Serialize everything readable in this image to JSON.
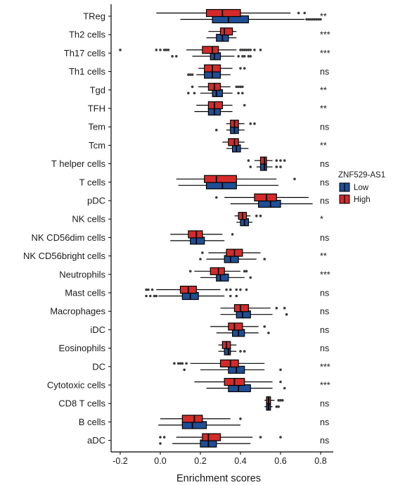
{
  "chart_data": {
    "type": "boxplot",
    "xlabel": "Enrichment scores",
    "xlim": [
      -0.25,
      0.85
    ],
    "xticks": [
      -0.2,
      0.0,
      0.2,
      0.4,
      0.6,
      0.8
    ],
    "xtick_labels": [
      "-0.2",
      "0.0",
      "0.2",
      "0.4",
      "0.6",
      "0.8"
    ],
    "legend": {
      "title": "ZNF529-AS1",
      "position": "right",
      "entries": [
        {
          "name": "Low",
          "color": "#1f4e96"
        },
        {
          "name": "High",
          "color": "#d42a2a"
        }
      ]
    },
    "categories": [
      {
        "name": "TReg",
        "sig": "**",
        "high": {
          "whislo": -0.02,
          "q1": 0.23,
          "med": 0.31,
          "q3": 0.4,
          "whishi": 0.65,
          "outliers": [
            0.69,
            0.72
          ]
        },
        "low": {
          "whislo": 0.1,
          "q1": 0.26,
          "med": 0.34,
          "q3": 0.44,
          "whishi": 0.72,
          "outliers": [
            0.73,
            0.74,
            0.75,
            0.76,
            0.77,
            0.78,
            0.79,
            0.8
          ]
        }
      },
      {
        "name": "Th2 cells",
        "sig": "***",
        "high": {
          "whislo": 0.24,
          "q1": 0.3,
          "med": 0.32,
          "q3": 0.36,
          "whishi": 0.38,
          "outliers": []
        },
        "low": {
          "whislo": 0.23,
          "q1": 0.28,
          "med": 0.31,
          "q3": 0.34,
          "whishi": 0.38,
          "outliers": []
        }
      },
      {
        "name": "Th17 cells",
        "sig": "***",
        "high": {
          "whislo": 0.13,
          "q1": 0.21,
          "med": 0.26,
          "q3": 0.29,
          "whishi": 0.38,
          "outliers": [
            -0.2,
            -0.02,
            0.0,
            0.02,
            0.03,
            0.04,
            0.4,
            0.41,
            0.42,
            0.43,
            0.44,
            0.45,
            0.47,
            0.5
          ]
        },
        "low": {
          "whislo": 0.16,
          "q1": 0.25,
          "med": 0.27,
          "q3": 0.3,
          "whishi": 0.37,
          "outliers": [
            0.06,
            0.08,
            0.39,
            0.41,
            0.42,
            0.44,
            0.45
          ]
        }
      },
      {
        "name": "Th1 cells",
        "sig": "ns",
        "high": {
          "whislo": 0.19,
          "q1": 0.22,
          "med": 0.26,
          "q3": 0.3,
          "whishi": 0.36,
          "outliers": [
            0.4,
            0.42
          ]
        },
        "low": {
          "whislo": 0.18,
          "q1": 0.22,
          "med": 0.26,
          "q3": 0.3,
          "whishi": 0.35,
          "outliers": [
            0.14,
            0.15,
            0.16
          ]
        }
      },
      {
        "name": "Tgd",
        "sig": "**",
        "high": {
          "whislo": 0.19,
          "q1": 0.24,
          "med": 0.27,
          "q3": 0.3,
          "whishi": 0.35,
          "outliers": [
            0.16,
            0.38,
            0.39,
            0.4,
            0.41
          ]
        },
        "low": {
          "whislo": 0.2,
          "q1": 0.26,
          "med": 0.28,
          "q3": 0.31,
          "whishi": 0.36,
          "outliers": [
            0.14,
            0.17,
            0.39,
            0.41
          ]
        }
      },
      {
        "name": "TFH",
        "sig": "**",
        "high": {
          "whislo": 0.18,
          "q1": 0.24,
          "med": 0.27,
          "q3": 0.31,
          "whishi": 0.36,
          "outliers": [
            0.42
          ]
        },
        "low": {
          "whislo": 0.17,
          "q1": 0.24,
          "med": 0.27,
          "q3": 0.3,
          "whishi": 0.36,
          "outliers": []
        }
      },
      {
        "name": "Tem",
        "sig": "ns",
        "high": {
          "whislo": 0.33,
          "q1": 0.35,
          "med": 0.37,
          "q3": 0.39,
          "whishi": 0.42,
          "outliers": [
            0.45,
            0.47
          ]
        },
        "low": {
          "whislo": 0.33,
          "q1": 0.35,
          "med": 0.37,
          "q3": 0.39,
          "whishi": 0.42,
          "outliers": [
            0.28
          ]
        }
      },
      {
        "name": "Tcm",
        "sig": "**",
        "high": {
          "whislo": 0.31,
          "q1": 0.34,
          "med": 0.37,
          "q3": 0.39,
          "whishi": 0.42,
          "outliers": []
        },
        "low": {
          "whislo": 0.33,
          "q1": 0.36,
          "med": 0.38,
          "q3": 0.4,
          "whishi": 0.44,
          "outliers": []
        }
      },
      {
        "name": "T helper cells",
        "sig": "ns",
        "high": {
          "whislo": 0.47,
          "q1": 0.5,
          "med": 0.52,
          "q3": 0.53,
          "whishi": 0.56,
          "outliers": [
            0.44,
            0.58,
            0.6,
            0.62
          ]
        },
        "low": {
          "whislo": 0.48,
          "q1": 0.5,
          "med": 0.52,
          "q3": 0.53,
          "whishi": 0.56,
          "outliers": [
            0.45,
            0.58,
            0.6
          ]
        }
      },
      {
        "name": "T cells",
        "sig": "ns",
        "high": {
          "whislo": 0.08,
          "q1": 0.22,
          "med": 0.28,
          "q3": 0.38,
          "whishi": 0.58,
          "outliers": [
            0.67
          ]
        },
        "low": {
          "whislo": 0.09,
          "q1": 0.23,
          "med": 0.31,
          "q3": 0.38,
          "whishi": 0.59,
          "outliers": []
        }
      },
      {
        "name": "pDC",
        "sig": "ns",
        "high": {
          "whislo": 0.32,
          "q1": 0.47,
          "med": 0.53,
          "q3": 0.58,
          "whishi": 0.74,
          "outliers": [
            0.28
          ]
        },
        "low": {
          "whislo": 0.35,
          "q1": 0.49,
          "med": 0.55,
          "q3": 0.6,
          "whishi": 0.76,
          "outliers": []
        }
      },
      {
        "name": "NK cells",
        "sig": "*",
        "high": {
          "whislo": 0.37,
          "q1": 0.39,
          "med": 0.41,
          "q3": 0.43,
          "whishi": 0.45,
          "outliers": [
            0.48,
            0.5
          ]
        },
        "low": {
          "whislo": 0.38,
          "q1": 0.4,
          "med": 0.42,
          "q3": 0.44,
          "whishi": 0.46,
          "outliers": []
        }
      },
      {
        "name": "NK CD56dim cells",
        "sig": "ns",
        "high": {
          "whislo": 0.05,
          "q1": 0.14,
          "med": 0.18,
          "q3": 0.21,
          "whishi": 0.31,
          "outliers": [
            0.36
          ]
        },
        "low": {
          "whislo": 0.05,
          "q1": 0.15,
          "med": 0.18,
          "q3": 0.22,
          "whishi": 0.32,
          "outliers": []
        }
      },
      {
        "name": "NK CD56bright cells",
        "sig": "**",
        "high": {
          "whislo": 0.24,
          "q1": 0.33,
          "med": 0.37,
          "q3": 0.41,
          "whishi": 0.5,
          "outliers": [
            0.21
          ]
        },
        "low": {
          "whislo": 0.23,
          "q1": 0.32,
          "med": 0.35,
          "q3": 0.39,
          "whishi": 0.48,
          "outliers": [
            0.2,
            0.52
          ]
        }
      },
      {
        "name": "Neutrophils",
        "sig": "***",
        "high": {
          "whislo": 0.17,
          "q1": 0.25,
          "med": 0.29,
          "q3": 0.32,
          "whishi": 0.4,
          "outliers": [
            0.15,
            0.42,
            0.43
          ]
        },
        "low": {
          "whislo": 0.2,
          "q1": 0.28,
          "med": 0.3,
          "q3": 0.34,
          "whishi": 0.42,
          "outliers": [
            0.45
          ]
        }
      },
      {
        "name": "Mast cells",
        "sig": "ns",
        "high": {
          "whislo": -0.02,
          "q1": 0.1,
          "med": 0.14,
          "q3": 0.18,
          "whishi": 0.3,
          "outliers": [
            -0.07,
            -0.06,
            -0.04,
            0.33,
            0.35,
            0.38,
            0.4,
            0.43
          ]
        },
        "low": {
          "whislo": -0.01,
          "q1": 0.11,
          "med": 0.15,
          "q3": 0.19,
          "whishi": 0.32,
          "outliers": [
            -0.07,
            -0.05,
            -0.03,
            -0.02,
            0.35,
            0.38
          ]
        }
      },
      {
        "name": "Macrophages",
        "sig": "ns",
        "high": {
          "whislo": 0.3,
          "q1": 0.37,
          "med": 0.4,
          "q3": 0.44,
          "whishi": 0.55,
          "outliers": [
            0.58,
            0.62
          ]
        },
        "low": {
          "whislo": 0.3,
          "q1": 0.38,
          "med": 0.41,
          "q3": 0.45,
          "whishi": 0.56,
          "outliers": [
            0.63
          ]
        }
      },
      {
        "name": "iDC",
        "sig": "ns",
        "high": {
          "whislo": 0.25,
          "q1": 0.34,
          "med": 0.37,
          "q3": 0.41,
          "whishi": 0.49,
          "outliers": [
            0.52
          ]
        },
        "low": {
          "whislo": 0.28,
          "q1": 0.36,
          "med": 0.39,
          "q3": 0.42,
          "whishi": 0.49,
          "outliers": [
            0.54
          ]
        }
      },
      {
        "name": "Eosinophils",
        "sig": "ns",
        "high": {
          "whislo": 0.29,
          "q1": 0.31,
          "med": 0.33,
          "q3": 0.35,
          "whishi": 0.38,
          "outliers": []
        },
        "low": {
          "whislo": 0.29,
          "q1": 0.32,
          "med": 0.34,
          "q3": 0.35,
          "whishi": 0.38,
          "outliers": [
            0.4,
            0.42
          ]
        }
      },
      {
        "name": "DC",
        "sig": "***",
        "high": {
          "whislo": 0.15,
          "q1": 0.3,
          "med": 0.35,
          "q3": 0.39,
          "whishi": 0.52,
          "outliers": [
            0.07,
            0.09,
            0.1,
            0.11,
            0.13
          ]
        },
        "low": {
          "whislo": 0.2,
          "q1": 0.34,
          "med": 0.38,
          "q3": 0.42,
          "whishi": 0.52,
          "outliers": [
            0.12,
            0.6
          ]
        }
      },
      {
        "name": "Cytotoxic cells",
        "sig": "***",
        "high": {
          "whislo": 0.17,
          "q1": 0.32,
          "med": 0.37,
          "q3": 0.42,
          "whishi": 0.56,
          "outliers": [
            0.6
          ]
        },
        "low": {
          "whislo": 0.23,
          "q1": 0.34,
          "med": 0.39,
          "q3": 0.45,
          "whishi": 0.56,
          "outliers": [
            0.62
          ]
        }
      },
      {
        "name": "CD8 T cells",
        "sig": "ns",
        "high": {
          "whislo": 0.52,
          "q1": 0.53,
          "med": 0.54,
          "q3": 0.55,
          "whishi": 0.57,
          "outliers": [
            0.59,
            0.6,
            0.61
          ]
        },
        "low": {
          "whislo": 0.52,
          "q1": 0.53,
          "med": 0.54,
          "q3": 0.55,
          "whishi": 0.56,
          "outliers": [
            0.58,
            0.59
          ]
        }
      },
      {
        "name": "B cells",
        "sig": "ns",
        "high": {
          "whislo": 0.0,
          "q1": 0.11,
          "med": 0.17,
          "q3": 0.21,
          "whishi": 0.35,
          "outliers": [
            0.4
          ]
        },
        "low": {
          "whislo": -0.01,
          "q1": 0.11,
          "med": 0.16,
          "q3": 0.23,
          "whishi": 0.4,
          "outliers": []
        }
      },
      {
        "name": "aDC",
        "sig": "ns",
        "high": {
          "whislo": 0.08,
          "q1": 0.21,
          "med": 0.24,
          "q3": 0.3,
          "whishi": 0.46,
          "outliers": [
            0.0,
            0.02,
            0.5,
            0.6
          ]
        },
        "low": {
          "whislo": 0.06,
          "q1": 0.2,
          "med": 0.24,
          "q3": 0.28,
          "whishi": 0.45,
          "outliers": [
            0.0
          ]
        }
      }
    ]
  }
}
